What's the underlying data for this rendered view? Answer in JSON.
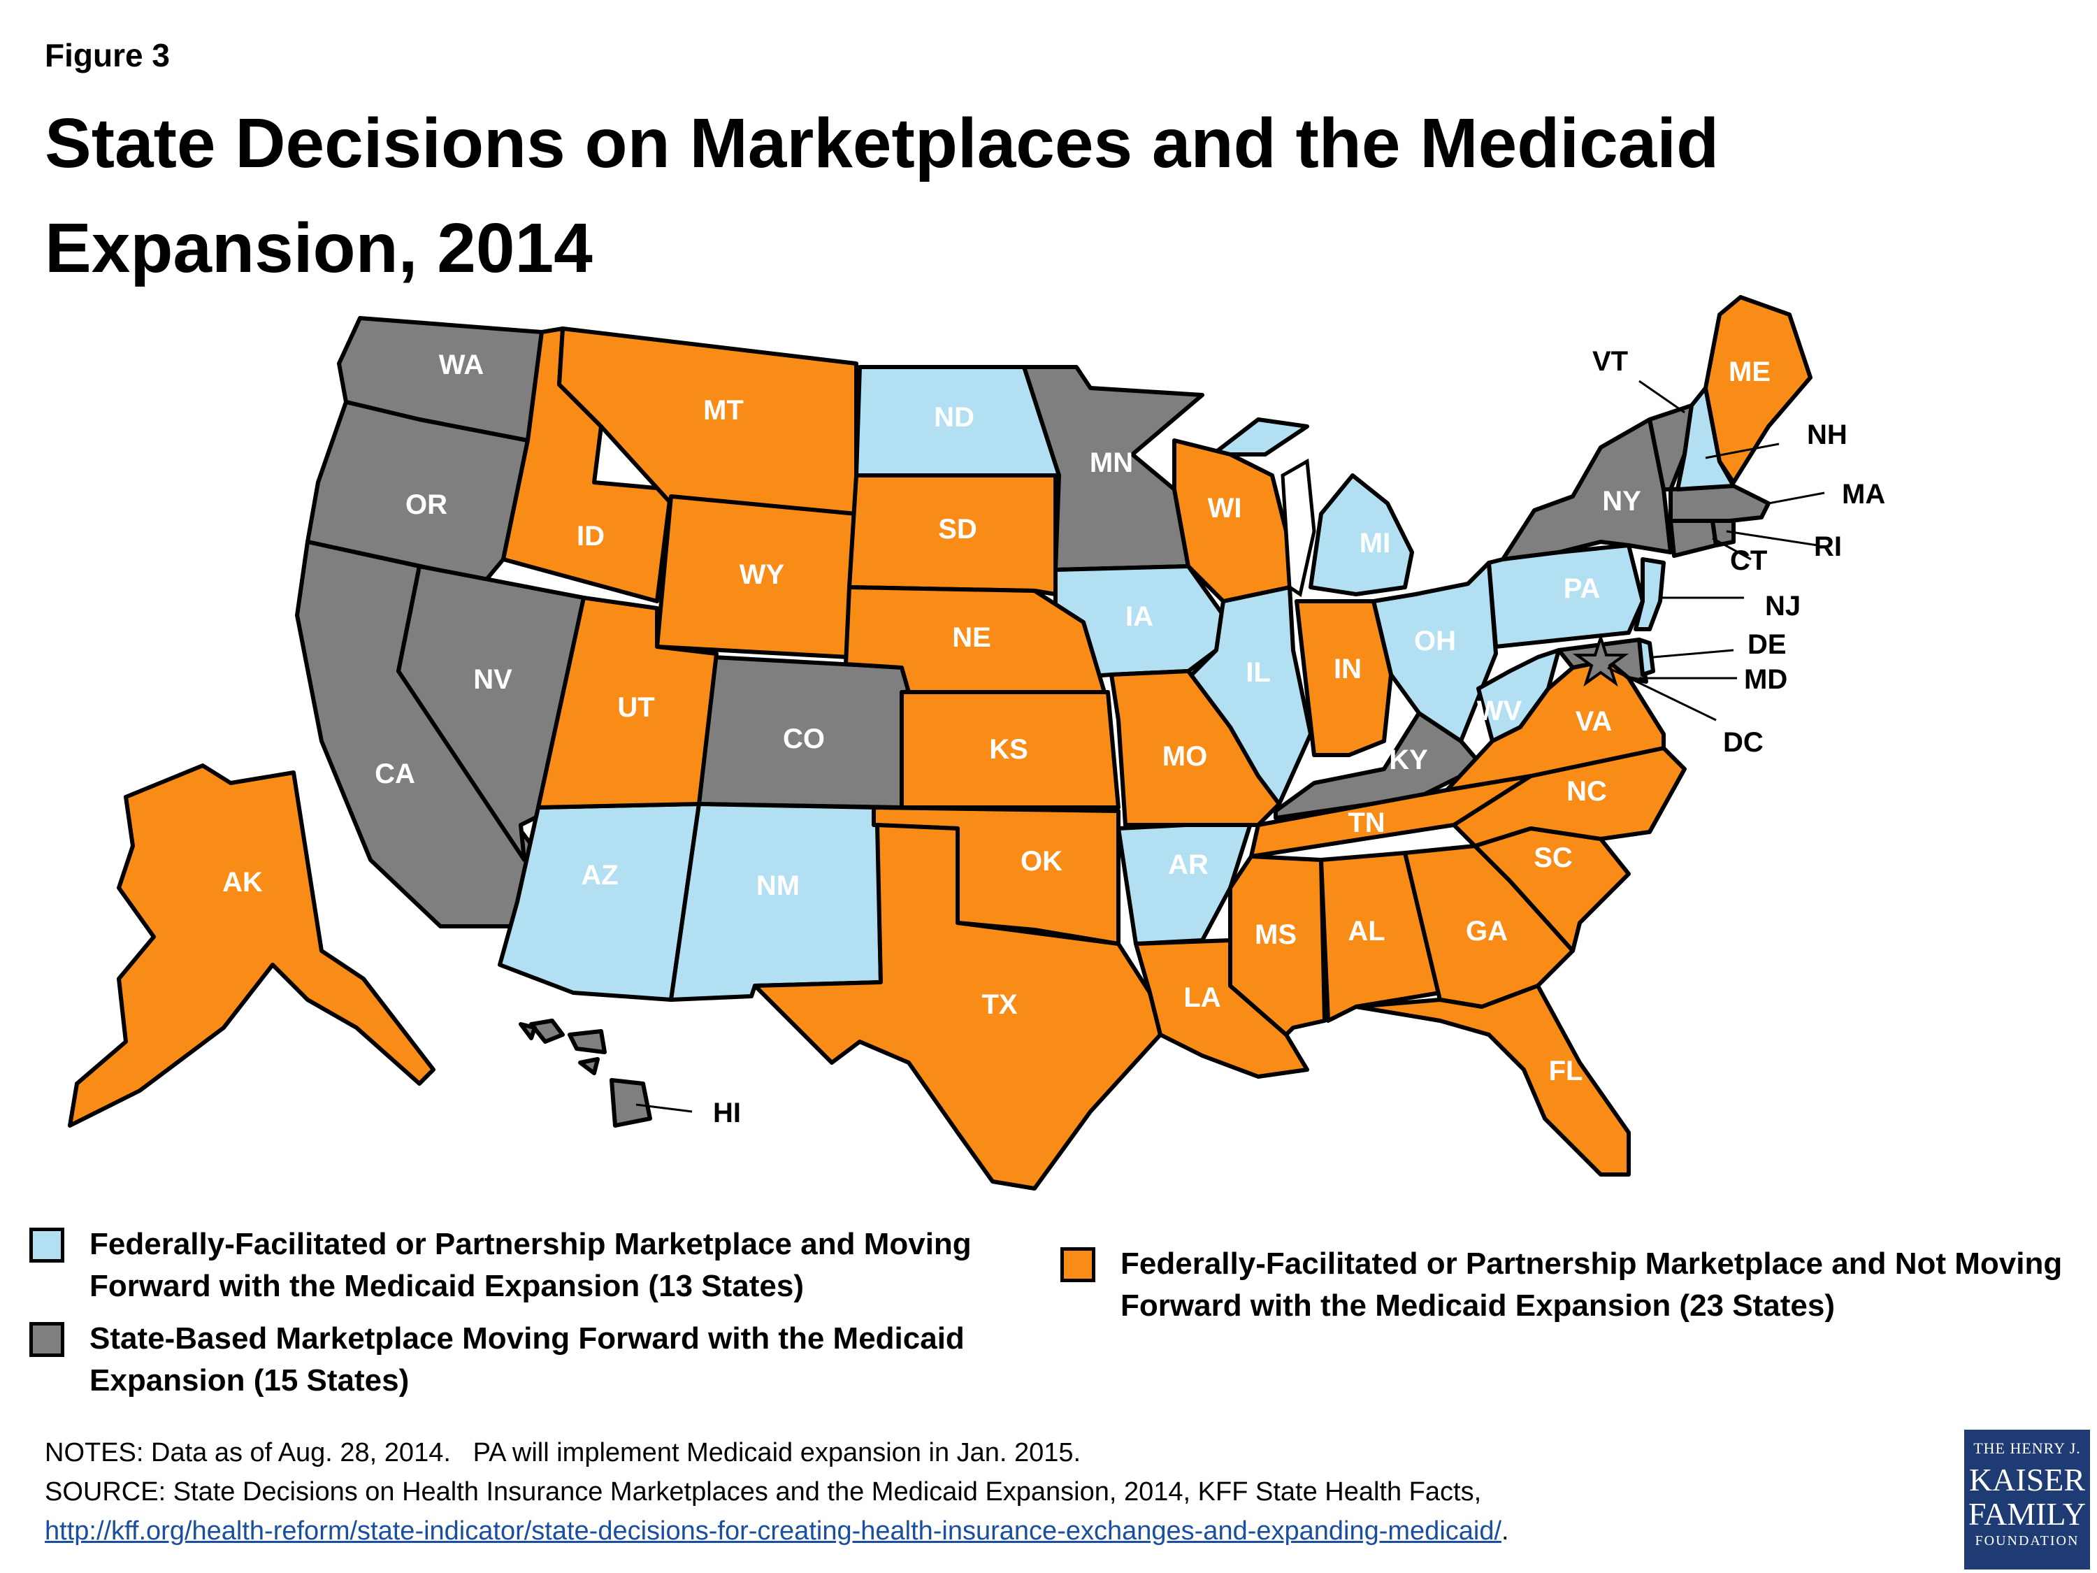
{
  "figure_label": "Figure 3",
  "title": "State Decisions on Marketplaces and the Medicaid Expansion, 2014",
  "colors": {
    "expanding_federal": "#b3dff3",
    "state_based_expanding": "#7f7f7f",
    "not_expanding": "#f98b17"
  },
  "states": {
    "WA": "WA",
    "OR": "OR",
    "CA": "CA",
    "NV": "NV",
    "ID": "ID",
    "MT": "MT",
    "WY": "WY",
    "UT": "UT",
    "AZ": "AZ",
    "CO": "CO",
    "NM": "NM",
    "ND": "ND",
    "SD": "SD",
    "NE": "NE",
    "KS": "KS",
    "OK": "OK",
    "TX": "TX",
    "MN": "MN",
    "IA": "IA",
    "MO": "MO",
    "AR": "AR",
    "LA": "LA",
    "WI": "WI",
    "IL": "IL",
    "MI": "MI",
    "IN": "IN",
    "OH": "OH",
    "KY": "KY",
    "TN": "TN",
    "MS": "MS",
    "AL": "AL",
    "GA": "GA",
    "FL": "FL",
    "SC": "SC",
    "NC": "NC",
    "VA": "VA",
    "WV": "WV",
    "PA": "PA",
    "NY": "NY",
    "VT": "VT",
    "NH": "NH",
    "ME": "ME",
    "MA": "MA",
    "RI": "RI",
    "CT": "CT",
    "NJ": "NJ",
    "DE": "DE",
    "MD": "MD",
    "DC": "DC",
    "AK": "AK",
    "HI": "HI"
  },
  "legend": [
    {
      "label": "Federally-Facilitated or Partnership Marketplace and Moving Forward with the Medicaid Expansion (13 States)",
      "color": "#b3dff3"
    },
    {
      "label": "State-Based Marketplace Moving Forward with the Medicaid Expansion (15 States)",
      "color": "#7f7f7f"
    },
    {
      "label": "Federally-Facilitated or Partnership Marketplace and Not Moving Forward with the Medicaid Expansion (23 States)",
      "color": "#f98b17"
    }
  ],
  "notes": "NOTES: Data as of Aug. 28, 2014.   PA will implement Medicaid expansion in Jan. 2015.",
  "source": "SOURCE: State Decisions on Health Insurance Marketplaces and the Medicaid Expansion, 2014, KFF State Health Facts,",
  "source_link": "http://kff.org/health-reform/state-indicator/state-decisions-for-creating-health-insurance-exchanges-and-expanding-medicaid/",
  "source_link_end": ".",
  "logo": {
    "line1": "THE HENRY J.",
    "line2": "KAISER",
    "line3": "FAMILY",
    "line4": "FOUNDATION"
  }
}
